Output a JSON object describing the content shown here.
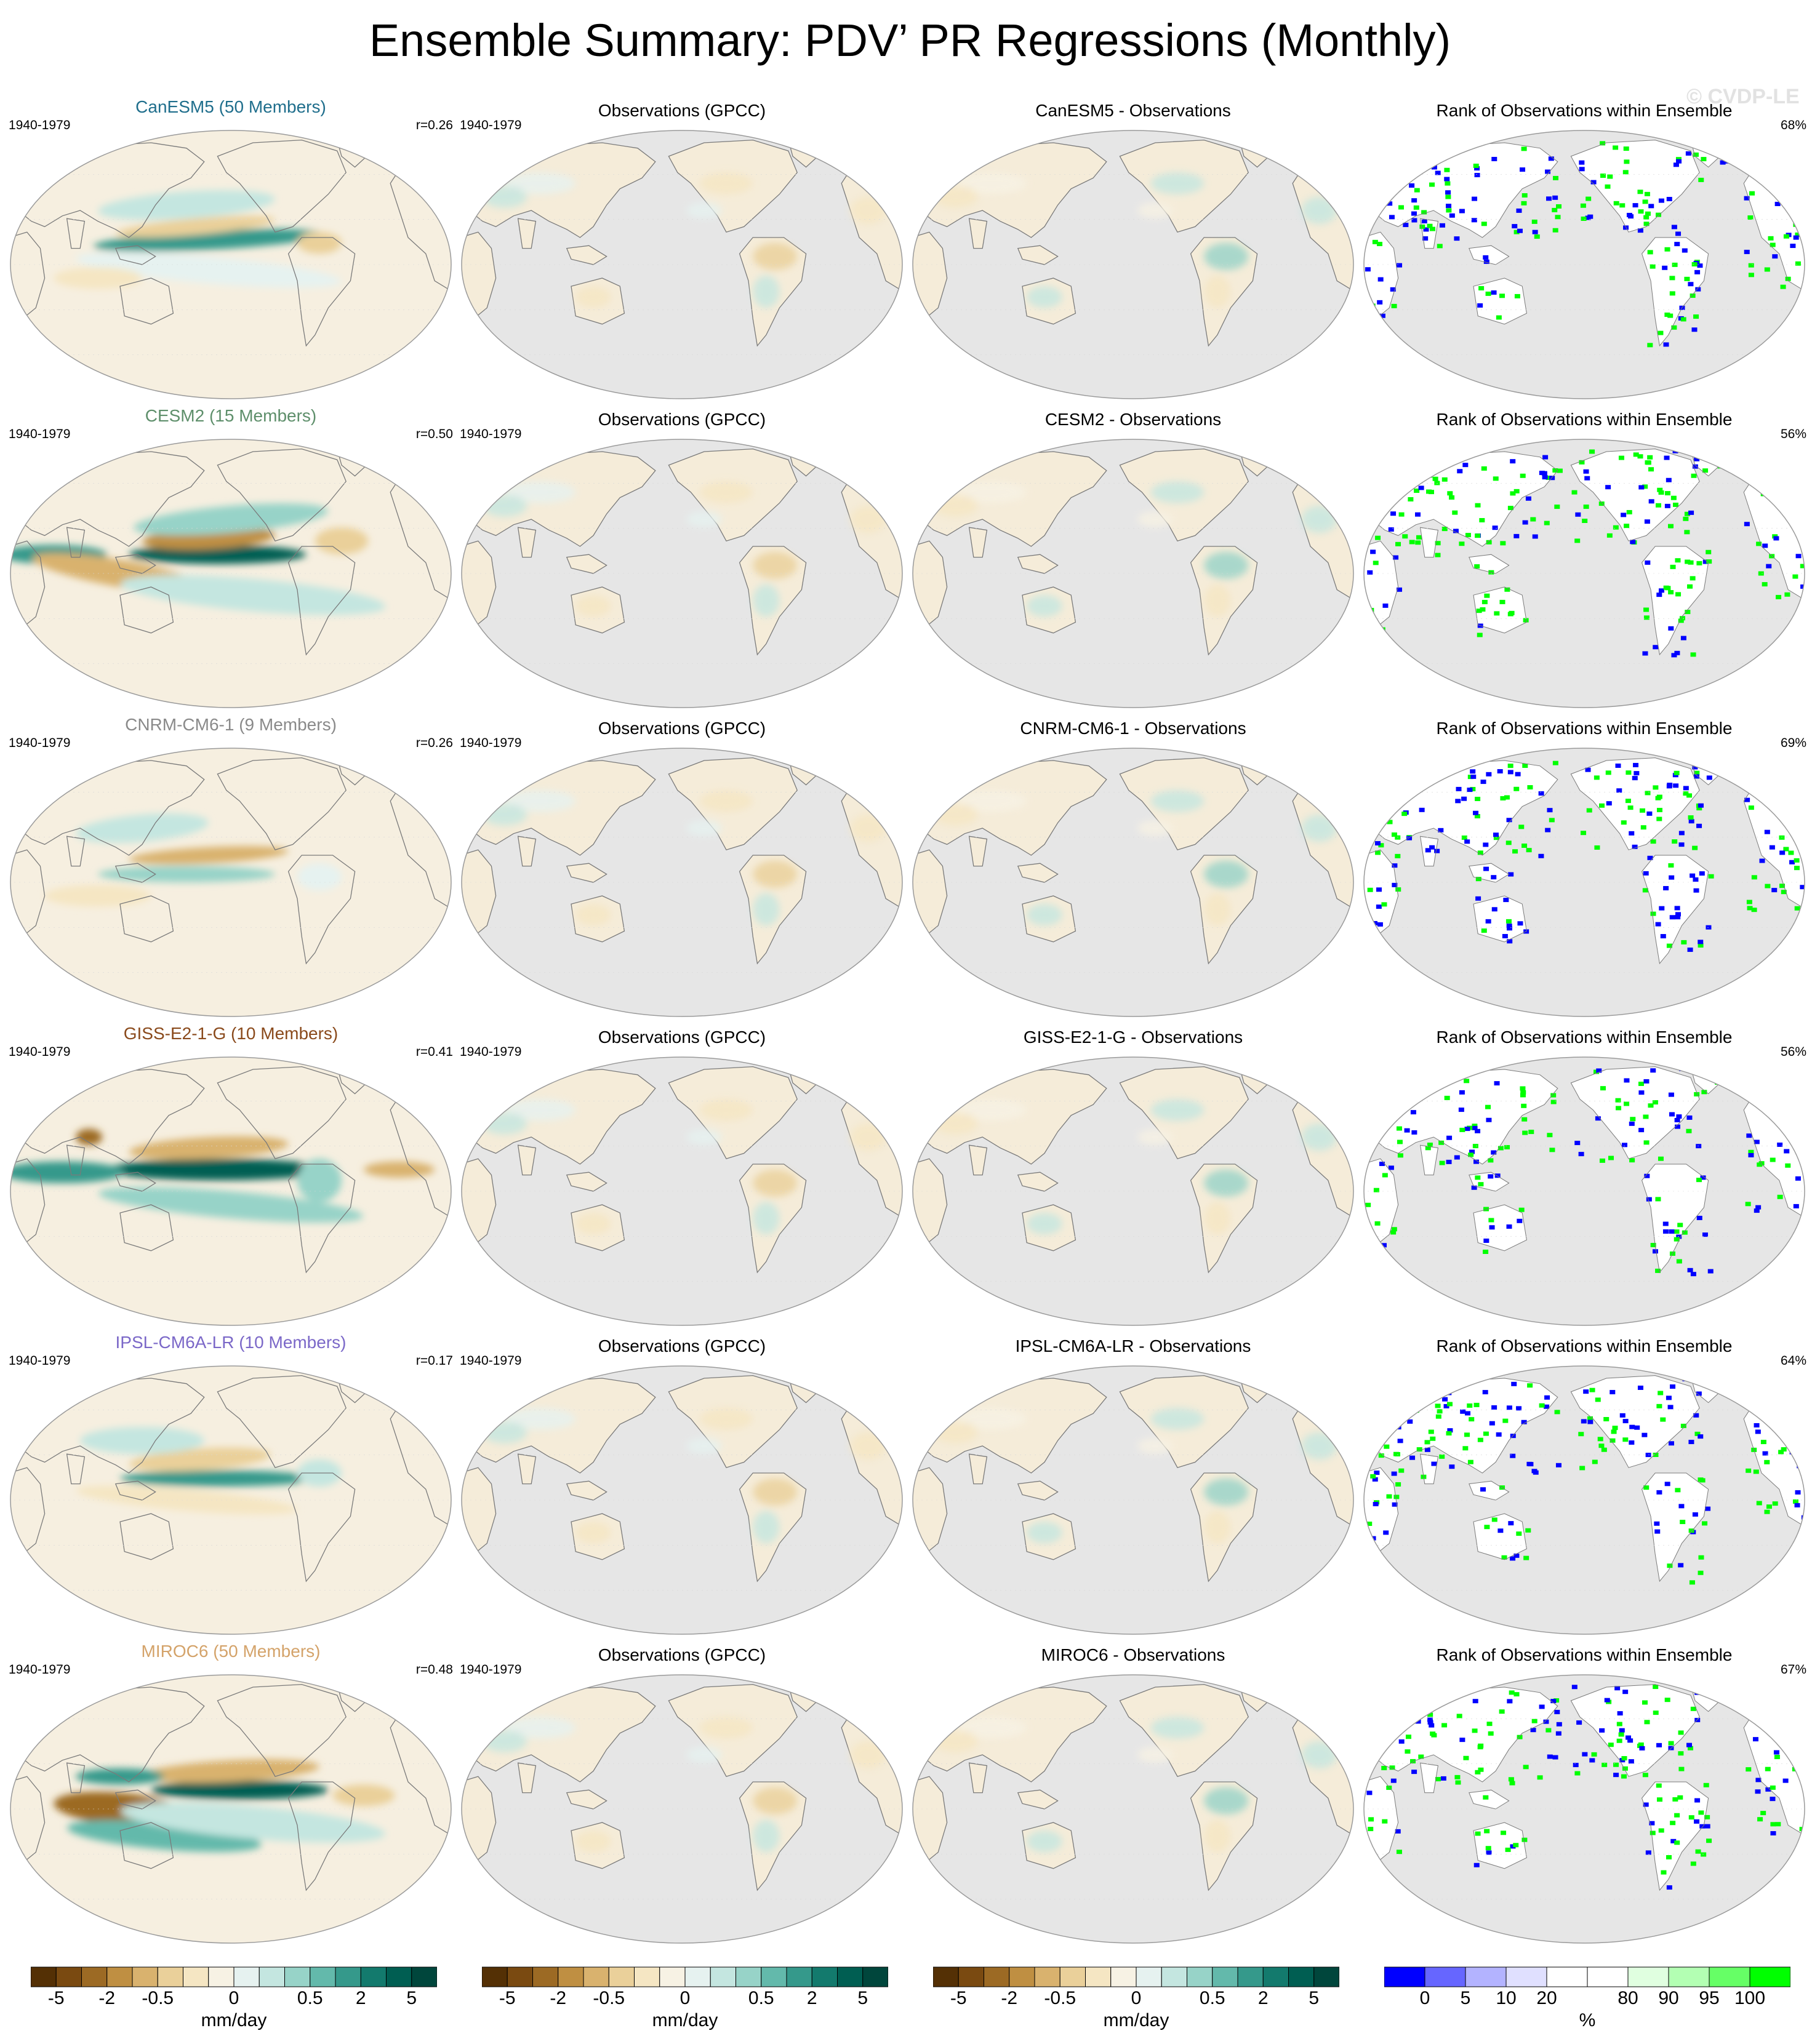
{
  "title": "Ensemble Summary: PDV’ PR Regressions (Monthly)",
  "watermark": "© CVDP-LE",
  "period": "1940-1979",
  "obs_title": "Observations (GPCC)",
  "rank_title": "Rank of Observations within Ensemble",
  "colors": {
    "map_background": "#e6e6e6",
    "coast": "#7a7a7a",
    "rank_low": "#0000ff",
    "rank_high": "#00ff00"
  },
  "rows": [
    {
      "model_title": "CanESM5 (50 Members)",
      "title_color": "#1f6e8c",
      "r_label": "r=0.26",
      "diff_title": "CanESM5 - Observations",
      "rank_pct": "68%"
    },
    {
      "model_title": "CESM2 (15 Members)",
      "title_color": "#5e8f6b",
      "r_label": "r=0.50",
      "diff_title": "CESM2 - Observations",
      "rank_pct": "56%"
    },
    {
      "model_title": "CNRM-CM6-1 (9 Members)",
      "title_color": "#8a8a8a",
      "r_label": "r=0.26",
      "diff_title": "CNRM-CM6-1 - Observations",
      "rank_pct": "69%"
    },
    {
      "model_title": "GISS-E2-1-G (10 Members)",
      "title_color": "#8a4a1c",
      "r_label": "r=0.41",
      "diff_title": "GISS-E2-1-G - Observations",
      "rank_pct": "56%"
    },
    {
      "model_title": "IPSL-CM6A-LR (10 Members)",
      "title_color": "#7b68c8",
      "r_label": "r=0.17",
      "diff_title": "IPSL-CM6A-LR - Observations",
      "rank_pct": "64%"
    },
    {
      "model_title": "MIROC6 (50 Members)",
      "title_color": "#d4a36a",
      "r_label": "r=0.48",
      "diff_title": "MIROC6 - Observations",
      "rank_pct": "67%"
    }
  ],
  "colorbars": {
    "pr": {
      "colors": [
        "#543005",
        "#7a4a11",
        "#9c6a24",
        "#bf8f42",
        "#d9b26e",
        "#ead09a",
        "#f5e6c3",
        "#f7f2e4",
        "#e6f2f0",
        "#c4e6e0",
        "#97d3c8",
        "#63b9ab",
        "#35998b",
        "#137a6d",
        "#005e52",
        "#00463c"
      ],
      "ticks": [
        "-5",
        "-2",
        "-0.5",
        "0",
        "0.5",
        "2",
        "5"
      ],
      "units": "mm/day"
    },
    "rank": {
      "colors": [
        "#0000ff",
        "#6666ff",
        "#b3b3ff",
        "#e0e0ff",
        "#ffffff",
        "#ffffff",
        "#e0ffe0",
        "#b3ffb3",
        "#66ff66",
        "#00ff00"
      ],
      "ticks": [
        "0",
        "5",
        "10",
        "20",
        "80",
        "90",
        "95",
        "100"
      ],
      "units": "%"
    }
  },
  "chart_data": {
    "type": "heatmap",
    "description_units": "mm/day",
    "panels_per_row": [
      "ensemble mean regression",
      "observations",
      "ensemble minus observations",
      "rank of observations"
    ],
    "pattern_correlations": [
      0.26,
      0.5,
      0.26,
      0.41,
      0.17,
      0.48
    ],
    "rank_percent_within_10_90": [
      68,
      56,
      69,
      56,
      64,
      67
    ]
  }
}
